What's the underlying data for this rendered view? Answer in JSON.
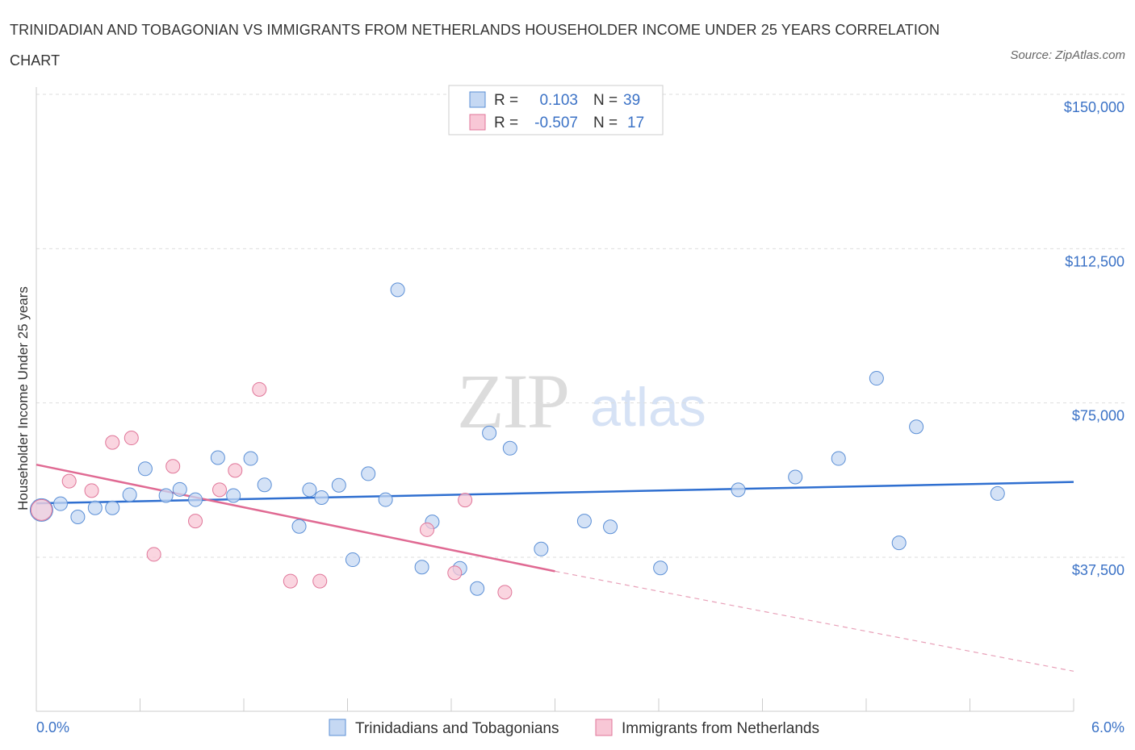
{
  "chart_data": {
    "type": "scatter",
    "title": "TRINIDADIAN AND TOBAGONIAN VS IMMIGRANTS FROM NETHERLANDS HOUSEHOLDER INCOME UNDER 25 YEARS CORRELATION CHART",
    "source": "Source: ZipAtlas.com",
    "watermark": {
      "zip": "ZIP",
      "atlas": "atlas"
    },
    "ylabel": "Householder Income Under 25 years",
    "xlim": [
      0,
      6
    ],
    "ylim": [
      0,
      150000
    ],
    "x_tick_labels": {
      "left": "0.0%",
      "right": "6.0%"
    },
    "y_ticks": [
      {
        "value": 150000,
        "label": "$150,000"
      },
      {
        "value": 112500,
        "label": "$112,500"
      },
      {
        "value": 75000,
        "label": "$75,000"
      },
      {
        "value": 37500,
        "label": "$37,500"
      }
    ],
    "legend": {
      "rows": [
        {
          "r_label": "R =",
          "r_value": "0.103",
          "n_label": "N =",
          "n_value": "39"
        },
        {
          "r_label": "R =",
          "r_value": "-0.507",
          "n_label": "N =",
          "n_value": "17"
        }
      ]
    },
    "series": [
      {
        "name": "Trinidadians and Tobagonians",
        "color": "#5b8fd6",
        "fill": "#c5d8f3",
        "points": [
          [
            0.03,
            49000
          ],
          [
            0.14,
            50500
          ],
          [
            0.24,
            47300
          ],
          [
            0.34,
            49500
          ],
          [
            0.44,
            49500
          ],
          [
            0.54,
            52700
          ],
          [
            0.63,
            59000
          ],
          [
            0.75,
            52500
          ],
          [
            0.83,
            54000
          ],
          [
            0.92,
            51500
          ],
          [
            1.05,
            61700
          ],
          [
            1.14,
            52500
          ],
          [
            1.24,
            61500
          ],
          [
            1.32,
            55100
          ],
          [
            1.52,
            45000
          ],
          [
            1.58,
            53900
          ],
          [
            1.65,
            52000
          ],
          [
            1.75,
            55000
          ],
          [
            1.83,
            36900
          ],
          [
            1.92,
            57800
          ],
          [
            2.02,
            51500
          ],
          [
            2.09,
            102500
          ],
          [
            2.23,
            35100
          ],
          [
            2.29,
            46100
          ],
          [
            2.45,
            34800
          ],
          [
            2.55,
            29900
          ],
          [
            2.62,
            67700
          ],
          [
            2.74,
            64000
          ],
          [
            2.92,
            39500
          ],
          [
            3.17,
            46300
          ],
          [
            3.32,
            44900
          ],
          [
            3.61,
            34900
          ],
          [
            4.06,
            53900
          ],
          [
            4.39,
            57000
          ],
          [
            4.64,
            61500
          ],
          [
            4.86,
            81000
          ],
          [
            4.99,
            41000
          ],
          [
            5.09,
            69200
          ],
          [
            5.56,
            53000
          ]
        ],
        "trend": {
          "x": [
            0,
            6
          ],
          "y": [
            50600,
            55800
          ]
        }
      },
      {
        "name": "Immigrants from Netherlands",
        "color": "#e07699",
        "fill": "#f8c7d6",
        "points": [
          [
            0.03,
            49000
          ],
          [
            0.19,
            56000
          ],
          [
            0.32,
            53700
          ],
          [
            0.44,
            65400
          ],
          [
            0.55,
            66500
          ],
          [
            0.68,
            38200
          ],
          [
            0.79,
            59600
          ],
          [
            0.92,
            46300
          ],
          [
            1.06,
            53900
          ],
          [
            1.15,
            58600
          ],
          [
            1.29,
            78300
          ],
          [
            1.47,
            31700
          ],
          [
            1.64,
            31700
          ],
          [
            2.26,
            44200
          ],
          [
            2.42,
            33700
          ],
          [
            2.48,
            51400
          ],
          [
            2.71,
            29000
          ]
        ],
        "trend": {
          "x": [
            0,
            3.0
          ],
          "y": [
            60000,
            34100
          ]
        },
        "trend_dashed": {
          "x": [
            3.0,
            6.0
          ],
          "y": [
            34100,
            9800
          ]
        }
      }
    ]
  },
  "bottom_legend": [
    {
      "label": "Trinidadians and Tobagonians",
      "fill": "#c5d8f3",
      "stroke": "#5b8fd6"
    },
    {
      "label": "Immigrants from Netherlands",
      "fill": "#f8c7d6",
      "stroke": "#e07699"
    }
  ]
}
